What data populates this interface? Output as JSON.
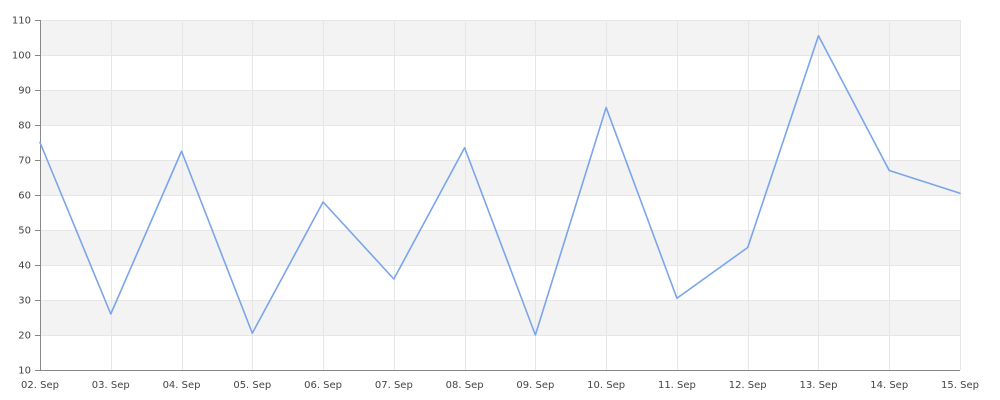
{
  "chart_data": {
    "type": "line",
    "x": [
      "02. Sep",
      "03. Sep",
      "04. Sep",
      "05. Sep",
      "06. Sep",
      "07. Sep",
      "08. Sep",
      "09. Sep",
      "10. Sep",
      "11. Sep",
      "12. Sep",
      "13. Sep",
      "14. Sep",
      "15. Sep"
    ],
    "series": [
      {
        "values": [
          75,
          26,
          72.5,
          20.5,
          58,
          36,
          73.5,
          20,
          85,
          30.5,
          45,
          105.5,
          67,
          60.5
        ],
        "color": "#7aa5ec"
      }
    ],
    "y_ticks": [
      "10",
      "20",
      "30",
      "40",
      "50",
      "60",
      "70",
      "80",
      "90",
      "100",
      "110"
    ],
    "ylim": [
      10,
      110
    ],
    "grid": true,
    "band_color": "#f3f3f3",
    "grid_color": "#e6e6e6",
    "axis_color": "#888888"
  }
}
